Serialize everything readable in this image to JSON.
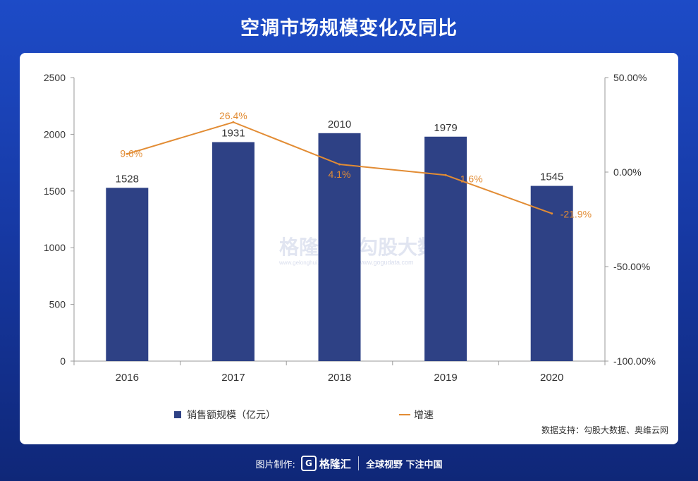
{
  "title": "空调市场规模变化及同比",
  "source": "数据支持：勾股大数据、奥维云网",
  "footer": {
    "made_by": "图片制作:",
    "logo_mark": "G",
    "logo_text": "格隆汇",
    "slogan": "全球视野 下注中国"
  },
  "watermark": {
    "text1": "格隆汇",
    "text2": "勾股大数据",
    "url1": "www.gelonghui.com",
    "url2": "www.gogudata.com"
  },
  "colors": {
    "bar": "#2e4185",
    "line": "#e28c34",
    "axis": "#999999",
    "text": "#333333"
  },
  "chart_data": {
    "type": "bar",
    "categories": [
      "2016",
      "2017",
      "2018",
      "2019",
      "2020"
    ],
    "series": [
      {
        "name": "销售额规模（亿元）",
        "kind": "bar",
        "axis": "left",
        "values": [
          1528,
          1931,
          2010,
          1979,
          1545
        ],
        "labels": [
          "1528",
          "1931",
          "2010",
          "1979",
          "1545"
        ]
      },
      {
        "name": "增速",
        "kind": "line",
        "axis": "right",
        "values": [
          9.6,
          26.4,
          4.1,
          -1.6,
          -21.9
        ],
        "labels": [
          "9.6%",
          "26.4%",
          "4.1%",
          "-1.6%",
          "-21.9%"
        ]
      }
    ],
    "left_axis": {
      "min": 0,
      "max": 2500,
      "ticks": [
        0,
        500,
        1000,
        1500,
        2000,
        2500
      ],
      "tick_labels": [
        "0",
        "500",
        "1000",
        "1500",
        "2000",
        "2500"
      ]
    },
    "right_axis": {
      "min": -100,
      "max": 50,
      "ticks": [
        -100,
        -50,
        0,
        50
      ],
      "tick_labels": [
        "-100.00%",
        "-50.00%",
        "0.00%",
        "50.00%"
      ]
    },
    "legend": [
      "销售额规模（亿元）",
      "增速"
    ],
    "legend_position": "bottom"
  }
}
